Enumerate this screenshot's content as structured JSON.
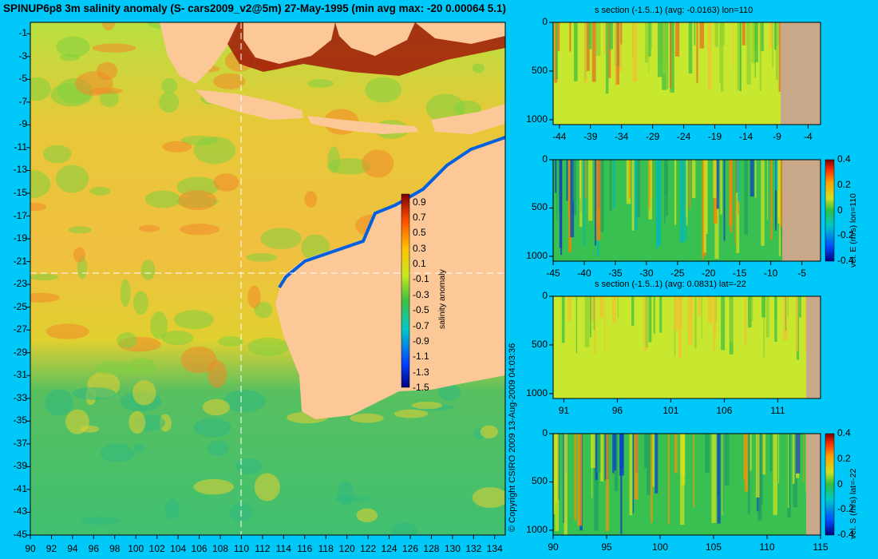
{
  "title": "SPINUP6p8 3m salinity anomaly (S- cars2009_v2@5m) 27-May-1995 (min avg max: -20 0.00064 5.1)",
  "copyright": "© Copyright CSIRO 2009  13-Aug-2009 04:03:36",
  "map": {
    "lon_ticks": [
      "90",
      "92",
      "94",
      "96",
      "98",
      "100",
      "102",
      "104",
      "106",
      "108",
      "110",
      "112",
      "114",
      "116",
      "118",
      "120",
      "122",
      "124",
      "126",
      "128",
      "130",
      "132",
      "134"
    ],
    "lat_ticks": [
      "-1",
      "-3",
      "-5",
      "-7",
      "-9",
      "-11",
      "-13",
      "-15",
      "-17",
      "-19",
      "-21",
      "-23",
      "-25",
      "-27",
      "-29",
      "-31",
      "-33",
      "-35",
      "-37",
      "-39",
      "-41",
      "-43",
      "-45"
    ],
    "crosshair_lon": 110,
    "crosshair_lat": -22,
    "colorbar": {
      "label": "salinity anomaly",
      "ticks": [
        "0.9",
        "0.7",
        "0.5",
        "0.3",
        "0.1",
        "-0.1",
        "-0.3",
        "-0.5",
        "-0.7",
        "-0.9",
        "-1.1",
        "-1.3",
        "-1.5"
      ],
      "range": [
        -1.5,
        1.0
      ]
    }
  },
  "panels": [
    {
      "subtitle": "s section (-1.5..1) (avg: -0.0163) lon=110",
      "x_ticks": [
        "-44",
        "-39",
        "-34",
        "-29",
        "-24",
        "-19",
        "-14",
        "-9",
        "-4"
      ],
      "y_ticks": [
        "0",
        "500",
        "1000"
      ],
      "colorbar": null
    },
    {
      "subtitle": "",
      "x_ticks": [
        "-45",
        "-40",
        "-35",
        "-30",
        "-25",
        "-20",
        "-15",
        "-10",
        "-5"
      ],
      "y_ticks": [
        "0",
        "500",
        "1000"
      ],
      "colorbar": {
        "label": "vel. E (m/s) lon=110",
        "ticks": [
          "0.4",
          "0.2",
          "0",
          "-0.2",
          "-0.4"
        ]
      }
    },
    {
      "subtitle": "s section (-1.5..1) (avg: 0.0831) lat=-22",
      "x_ticks": [
        "91",
        "96",
        "101",
        "106",
        "111"
      ],
      "y_ticks": [
        "0",
        "500",
        "1000"
      ],
      "colorbar": null
    },
    {
      "subtitle": "",
      "x_ticks": [
        "90",
        "95",
        "100",
        "105",
        "110",
        "115"
      ],
      "y_ticks": [
        "0",
        "500",
        "1000"
      ],
      "colorbar": {
        "label": "vel. S (m/s) lat=-22",
        "ticks": [
          "0.4",
          "0.2",
          "0",
          "-0.2",
          "-0.4"
        ]
      }
    }
  ],
  "colors": {
    "background": "#00c8f8",
    "land": "#fcc898",
    "section_land": "#c8a888",
    "salinity_mid": "#c8e830"
  }
}
